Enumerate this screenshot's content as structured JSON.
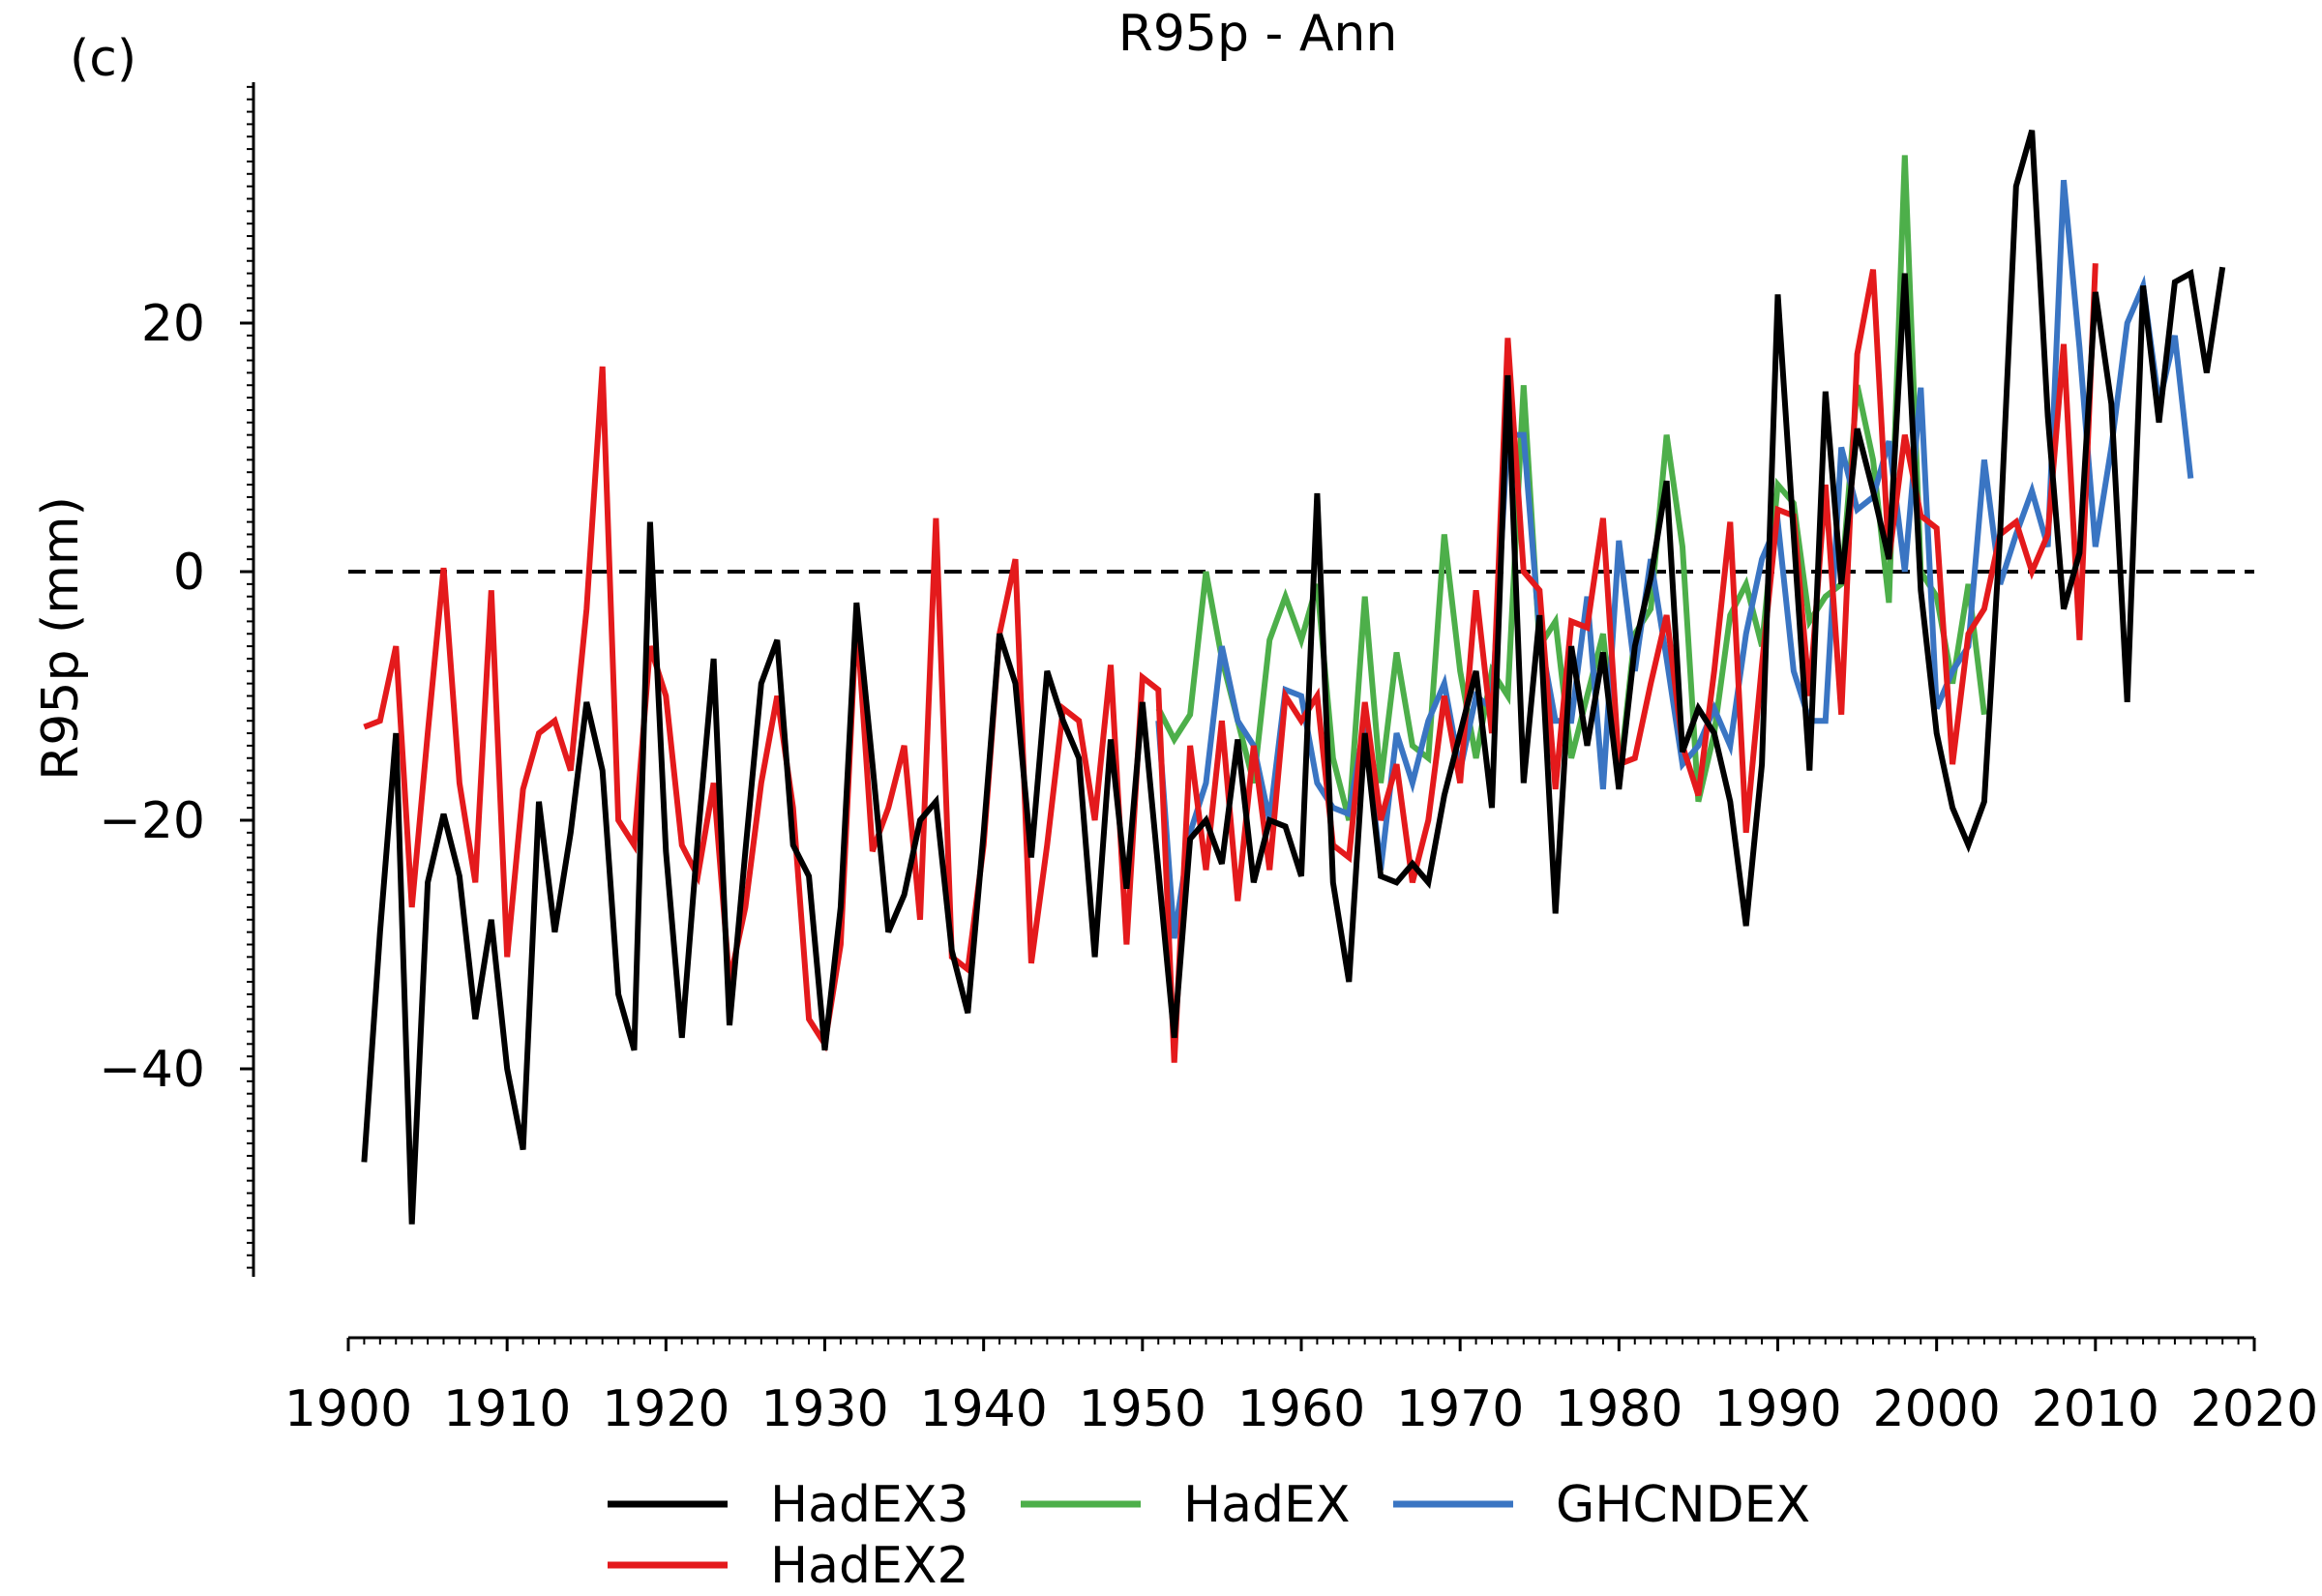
{
  "panel_label": "(c)",
  "chart_data": {
    "type": "line",
    "title": "R95p - Ann",
    "xlabel": "",
    "ylabel": "R95p (mm)",
    "xlim": [
      1900,
      2020
    ],
    "ylim": [
      -56,
      40
    ],
    "xticks": [
      1900,
      1910,
      1920,
      1930,
      1940,
      1950,
      1960,
      1970,
      1980,
      1990,
      2000,
      2010,
      2020
    ],
    "yticks": [
      -40,
      -20,
      0,
      20
    ],
    "reference_line": 0,
    "legend_position": "bottom-center",
    "grid": false,
    "series": [
      {
        "name": "HadEX",
        "color": "#4daf4a",
        "start_year": 1951,
        "values": [
          -11,
          -13.5,
          -11.5,
          0,
          -7,
          -12,
          -17,
          -5.5,
          -2,
          -5.5,
          -1,
          -15,
          -20,
          -2,
          -17,
          -6.5,
          -14,
          -15,
          3,
          -8,
          -15,
          -8,
          -10,
          15,
          -6,
          -4,
          -15,
          -10,
          -5,
          -17,
          -5,
          -3,
          11,
          2,
          -18.5,
          -13,
          -3.5,
          -1,
          -6,
          7,
          5.5,
          -4,
          -2,
          -1,
          15,
          9,
          -2.5,
          33.5,
          0,
          -2,
          -9,
          -1,
          -11.5
        ]
      },
      {
        "name": "GHCNDEX",
        "color": "#3a75c3",
        "start_year": 1951,
        "values": [
          -12,
          -29.5,
          -21,
          -17,
          -6,
          -12,
          -14,
          -20,
          -9.5,
          -10,
          -17,
          -19,
          -19.5,
          -12,
          -24,
          -13,
          -17,
          -12,
          -9,
          -16,
          -10,
          -11,
          11,
          11,
          -5,
          -12,
          -12,
          -2,
          -17.5,
          2.5,
          -8,
          1,
          -7,
          -15.5,
          -14,
          -11,
          -14,
          -5,
          1,
          4,
          -8,
          -12,
          -12,
          10,
          5,
          6,
          10.5,
          0,
          14.8,
          -11,
          -8,
          -6,
          9,
          -1,
          3,
          6.5,
          2,
          31.5,
          18,
          2,
          10,
          20,
          23,
          13.5,
          19,
          7.5
        ]
      },
      {
        "name": "HadEX2",
        "color": "#e41a1c",
        "start_year": 1901,
        "values": [
          -12.5,
          -12,
          -6,
          -27,
          -13,
          0.3,
          -17,
          -25,
          -1.5,
          -31,
          -17.5,
          -13,
          -12,
          -16,
          -3,
          16.5,
          -20,
          -22,
          -6,
          -10,
          -22,
          -24.5,
          -17,
          -33,
          -27,
          -17,
          -10,
          -19,
          -36,
          -38,
          -30,
          -3.5,
          -22.5,
          -19,
          -14,
          -28,
          4.3,
          -31,
          -32,
          -22,
          -5,
          1,
          -31.5,
          -22,
          -11,
          -12,
          -20,
          -7.5,
          -30,
          -8.5,
          -9.5,
          -39.5,
          -14,
          -24,
          -12,
          -26.5,
          -14,
          -24,
          -10,
          -12,
          -10,
          -22,
          -23,
          -10.5,
          -20,
          -15.5,
          -25,
          -20,
          -10,
          -17,
          -1.5,
          -13,
          18.8,
          0,
          -1.5,
          -17.5,
          -4,
          -4.5,
          4.3,
          -15.5,
          -15,
          -9,
          -3.5,
          -14,
          -18,
          -8,
          4,
          -21,
          -7.5,
          5,
          4.5,
          -10,
          7,
          -11.5,
          17.5,
          24.3,
          1,
          11,
          4.5,
          3.5,
          -15.5,
          -5,
          -3,
          3,
          4,
          0,
          3,
          18.3,
          -5.5,
          24.8
        ]
      },
      {
        "name": "HadEX3",
        "color": "#000000",
        "start_year": 1901,
        "values": [
          -47.5,
          -29,
          -13,
          -52.5,
          -25,
          -19.5,
          -24.5,
          -36,
          -28,
          -40,
          -46.5,
          -18.5,
          -29,
          -21,
          -10.5,
          -16,
          -34,
          -38.5,
          4,
          -22.5,
          -37.5,
          -21.5,
          -7,
          -36.5,
          -22.5,
          -9,
          -5.5,
          -22,
          -24.5,
          -38.5,
          -27,
          -2.5,
          -15.5,
          -29,
          -26,
          -20,
          -18.5,
          -30.5,
          -35.5,
          -21,
          -5,
          -9,
          -23,
          -8,
          -12,
          -15,
          -31,
          -13.5,
          -25.5,
          -10.5,
          -24,
          -37.5,
          -21.5,
          -20,
          -23.5,
          -13.5,
          -25,
          -20,
          -20.5,
          -24.5,
          6.3,
          -25,
          -33,
          -13,
          -24.5,
          -25,
          -23.5,
          -25,
          -18,
          -13,
          -8,
          -19,
          15.8,
          -17,
          -3.5,
          -27.5,
          -6,
          -14,
          -6.5,
          -17.5,
          -6,
          -0.5,
          7.3,
          -14.5,
          -11,
          -13,
          -18.5,
          -28.5,
          -15.5,
          22.3,
          3,
          -16,
          14.5,
          -1,
          11.5,
          6.5,
          1,
          24,
          -1.5,
          -13,
          -19,
          -22,
          -18.5,
          3,
          31,
          35.5,
          12.5,
          -3,
          1.5,
          22.5,
          13.5,
          -10.5,
          23,
          12,
          23.3,
          24,
          16,
          24.5
        ]
      }
    ]
  }
}
